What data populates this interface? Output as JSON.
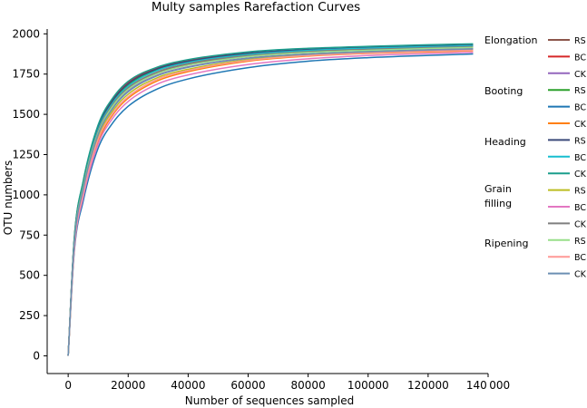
{
  "chart_data": {
    "type": "line",
    "title": "Multy samples Rarefaction Curves",
    "xlabel": "Number of sequences sampled",
    "ylabel": "OTU numbers",
    "xlim": [
      -7000,
      140000
    ],
    "ylim": [
      -110,
      2030
    ],
    "xticks": [
      0,
      20000,
      40000,
      60000,
      80000,
      100000,
      120000,
      140000
    ],
    "xtick_labels": [
      "0",
      "20000",
      "40000",
      "60000",
      "80000",
      "100000",
      "120000",
      "140 000"
    ],
    "yticks": [
      0,
      250,
      500,
      750,
      1000,
      1250,
      1500,
      1750,
      2000
    ],
    "ytick_labels": [
      "0",
      "250",
      "500",
      "750",
      "1000",
      "1250",
      "1500",
      "1750",
      "2000"
    ],
    "grid": false,
    "legend_position": "right",
    "x": [
      0,
      2000,
      5000,
      10000,
      15000,
      20000,
      30000,
      40000,
      60000,
      80000,
      100000,
      120000,
      135000
    ],
    "legend_groups": [
      {
        "label": "Elongation",
        "series_indices": [
          0,
          1,
          2
        ]
      },
      {
        "label": "Booting",
        "series_indices": [
          3,
          4,
          5
        ]
      },
      {
        "label": "Heading",
        "series_indices": [
          6,
          7,
          8
        ]
      },
      {
        "label": "Grain filling",
        "label_lines": [
          "Grain",
          "filling"
        ],
        "series_indices": [
          9,
          10,
          11
        ]
      },
      {
        "label": "Ripening",
        "series_indices": [
          12,
          13,
          14
        ]
      }
    ],
    "series": [
      {
        "name": "RS",
        "color": "#8c564b",
        "values": [
          0,
          700,
          1050,
          1390,
          1560,
          1660,
          1760,
          1810,
          1860,
          1885,
          1900,
          1912,
          1920
        ]
      },
      {
        "name": "BC",
        "color": "#d62728",
        "values": [
          0,
          720,
          1080,
          1430,
          1600,
          1700,
          1790,
          1835,
          1880,
          1900,
          1912,
          1920,
          1925
        ]
      },
      {
        "name": "CK",
        "color": "#9467bd",
        "values": [
          0,
          690,
          1040,
          1380,
          1545,
          1645,
          1745,
          1795,
          1850,
          1875,
          1890,
          1902,
          1910
        ]
      },
      {
        "name": "RS",
        "color": "#2ca02c",
        "values": [
          0,
          710,
          1060,
          1410,
          1580,
          1680,
          1780,
          1825,
          1875,
          1898,
          1912,
          1922,
          1928
        ]
      },
      {
        "name": "BC",
        "color": "#1f77b4",
        "values": [
          0,
          640,
          960,
          1290,
          1450,
          1550,
          1660,
          1720,
          1790,
          1830,
          1852,
          1866,
          1875
        ]
      },
      {
        "name": "CK",
        "color": "#ff7f0e",
        "values": [
          0,
          660,
          1000,
          1330,
          1500,
          1600,
          1710,
          1765,
          1830,
          1862,
          1878,
          1888,
          1895
        ]
      },
      {
        "name": "RS",
        "color": "#3b4a7a",
        "values": [
          0,
          715,
          1070,
          1420,
          1590,
          1690,
          1785,
          1830,
          1880,
          1903,
          1915,
          1925,
          1930
        ]
      },
      {
        "name": "BC",
        "color": "#17becf",
        "values": [
          0,
          705,
          1060,
          1405,
          1575,
          1675,
          1775,
          1822,
          1872,
          1897,
          1911,
          1920,
          1926
        ]
      },
      {
        "name": "CK",
        "color": "#1a9e8c",
        "values": [
          0,
          725,
          1085,
          1435,
          1605,
          1705,
          1795,
          1840,
          1888,
          1910,
          1922,
          1932,
          1938
        ]
      },
      {
        "name": "RS",
        "color": "#bcbd22",
        "values": [
          0,
          680,
          1020,
          1360,
          1525,
          1625,
          1730,
          1780,
          1840,
          1868,
          1884,
          1895,
          1900
        ]
      },
      {
        "name": "BC",
        "color": "#e377c2",
        "values": [
          0,
          655,
          985,
          1315,
          1480,
          1580,
          1690,
          1745,
          1810,
          1845,
          1865,
          1877,
          1885
        ]
      },
      {
        "name": "CK",
        "color": "#7f7f7f",
        "values": [
          0,
          700,
          1050,
          1395,
          1565,
          1665,
          1765,
          1815,
          1865,
          1890,
          1904,
          1914,
          1920
        ]
      },
      {
        "name": "RS",
        "color": "#98df8a",
        "values": [
          0,
          695,
          1045,
          1385,
          1555,
          1655,
          1755,
          1805,
          1858,
          1884,
          1898,
          1909,
          1915
        ]
      },
      {
        "name": "BC",
        "color": "#ff9896",
        "values": [
          0,
          670,
          1005,
          1345,
          1510,
          1610,
          1720,
          1772,
          1835,
          1865,
          1880,
          1892,
          1898
        ]
      },
      {
        "name": "CK",
        "color": "#6b8fb3",
        "values": [
          0,
          690,
          1035,
          1375,
          1540,
          1640,
          1742,
          1792,
          1848,
          1874,
          1889,
          1900,
          1906
        ]
      }
    ]
  }
}
